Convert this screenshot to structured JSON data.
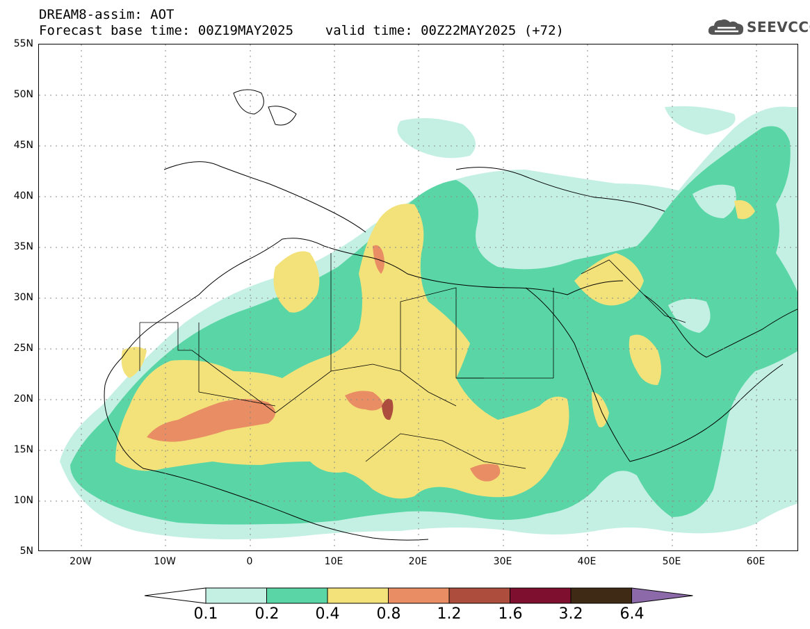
{
  "title": {
    "line1": "DREAM8-assim: AOT",
    "line2": "Forecast base time: 00Z19MAY2025    valid time: 00Z22MAY2025 (+72)"
  },
  "logo": {
    "text": "SEEVCCC",
    "icon": "cloud-icon"
  },
  "map": {
    "lat_labels": [
      "55N",
      "50N",
      "45N",
      "40N",
      "35N",
      "30N",
      "25N",
      "20N",
      "15N",
      "10N",
      "5N"
    ],
    "lon_labels": [
      "20W",
      "10W",
      "0",
      "10E",
      "20E",
      "30E",
      "40E",
      "50E",
      "60E"
    ],
    "lat_range": [
      5,
      55
    ],
    "lon_range": [
      -25,
      65
    ],
    "grid": "dotted",
    "variable": "AOT"
  },
  "colorbar": {
    "labels": [
      "0.1",
      "0.2",
      "0.4",
      "0.8",
      "1.2",
      "1.6",
      "3.2",
      "6.4"
    ],
    "colors": [
      "#ffffff",
      "#c4f0e4",
      "#5ad6a6",
      "#f3e27a",
      "#e98e64",
      "#ad4d3e",
      "#7e0f2e",
      "#3e2a15",
      "#8c6aa9"
    ]
  }
}
